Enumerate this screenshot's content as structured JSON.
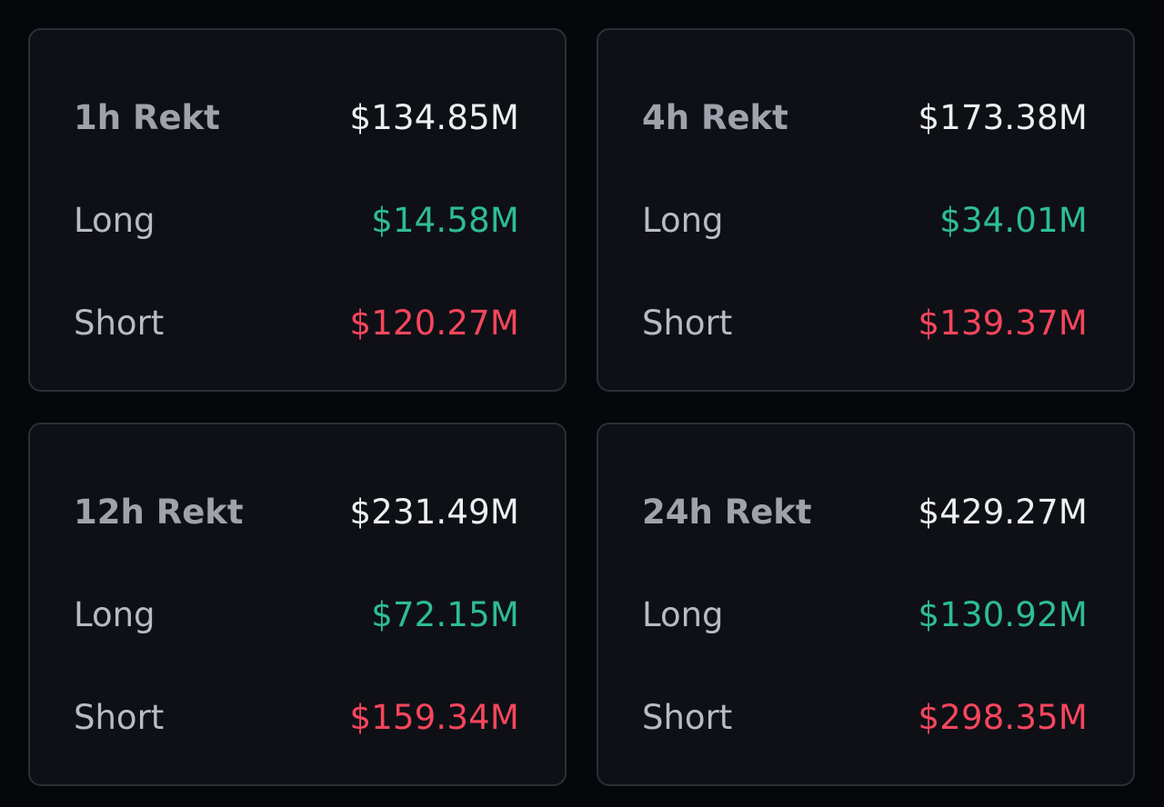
{
  "colors": {
    "background": "#05070b",
    "card": "#0e1016",
    "border": "#2b2f37",
    "long": "#2ebd92",
    "short": "#f6465d",
    "total": "#eceef1"
  },
  "cards": [
    {
      "title": "1h Rekt",
      "total": "$134.85M",
      "long_label": "Long",
      "long_value": "$14.58M",
      "short_label": "Short",
      "short_value": "$120.27M"
    },
    {
      "title": "4h Rekt",
      "total": "$173.38M",
      "long_label": "Long",
      "long_value": "$34.01M",
      "short_label": "Short",
      "short_value": "$139.37M"
    },
    {
      "title": "12h Rekt",
      "total": "$231.49M",
      "long_label": "Long",
      "long_value": "$72.15M",
      "short_label": "Short",
      "short_value": "$159.34M"
    },
    {
      "title": "24h Rekt",
      "total": "$429.27M",
      "long_label": "Long",
      "long_value": "$130.92M",
      "short_label": "Short",
      "short_value": "$298.35M"
    }
  ]
}
